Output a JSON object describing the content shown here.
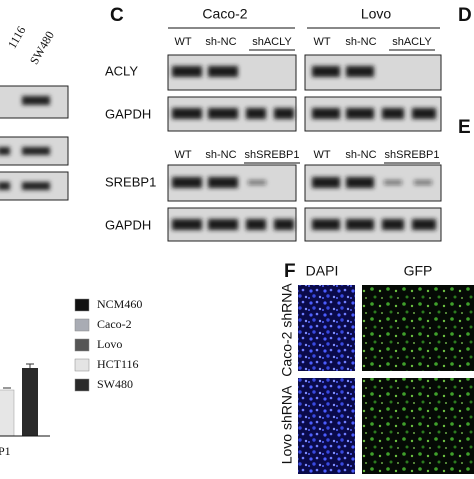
{
  "panel_b": {
    "lane_labels": [
      "1116",
      "SW480"
    ]
  },
  "panel_c": {
    "letter": "C",
    "groups": [
      "Caco-2",
      "Lovo"
    ],
    "lanes": [
      "WT",
      "sh-NC",
      "shACLY",
      "WT",
      "sh-NC",
      "shACLY"
    ],
    "rows": [
      "ACLY",
      "GAPDH"
    ]
  },
  "panel_d": {
    "letter": "D"
  },
  "panel_e": {
    "letter": "E",
    "lanes": [
      "WT",
      "sh-NC",
      "shSREBP1",
      "WT",
      "sh-NC",
      "shSREBP1"
    ],
    "rows": [
      "SREBP1",
      "GAPDH"
    ]
  },
  "legend": {
    "items": [
      "NCM460",
      "Caco-2",
      "Lovo",
      "HCT116",
      "SW480"
    ]
  },
  "axis_fragment": "P1",
  "panel_f": {
    "letter": "F",
    "columns": [
      "DAPI",
      "GFP"
    ],
    "rows": [
      "Caco-2 shRNA",
      "Lovo shRNA"
    ]
  }
}
